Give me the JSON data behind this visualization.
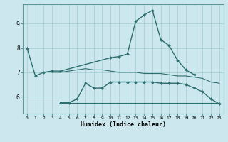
{
  "xlabel": "Humidex (Indice chaleur)",
  "xlim": [
    -0.5,
    23.5
  ],
  "ylim": [
    5.3,
    9.8
  ],
  "yticks": [
    6,
    7,
    8,
    9
  ],
  "xticks": [
    0,
    1,
    2,
    3,
    4,
    5,
    6,
    7,
    8,
    9,
    10,
    11,
    12,
    13,
    14,
    15,
    16,
    17,
    18,
    19,
    20,
    21,
    22,
    23
  ],
  "bg_color": "#cce8ee",
  "grid_color": "#a0cccc",
  "line_color": "#2d6e6e",
  "series": [
    {
      "x": [
        0,
        1,
        2,
        3,
        4,
        10,
        11,
        12,
        13,
        14,
        15,
        16,
        17,
        18,
        19,
        20
      ],
      "y": [
        8.0,
        6.85,
        7.0,
        7.05,
        7.05,
        7.6,
        7.65,
        7.75,
        9.1,
        9.35,
        9.55,
        8.35,
        8.1,
        7.5,
        7.1,
        6.9
      ],
      "marker": "D",
      "markersize": 2.0,
      "lw": 1.0
    },
    {
      "x": [
        3,
        4,
        5,
        6,
        7,
        8,
        9,
        10,
        11,
        12,
        13,
        14,
        15,
        16,
        17,
        18,
        19,
        20,
        21,
        22,
        23
      ],
      "y": [
        7.0,
        7.0,
        7.05,
        7.1,
        7.15,
        7.1,
        7.1,
        7.05,
        7.0,
        7.0,
        7.0,
        6.95,
        6.95,
        6.95,
        6.9,
        6.85,
        6.85,
        6.8,
        6.75,
        6.6,
        6.55
      ],
      "marker": null,
      "markersize": 0,
      "lw": 0.8
    },
    {
      "x": [
        4,
        5,
        6,
        7,
        8,
        9,
        10,
        11,
        12,
        13,
        14,
        15,
        16,
        17,
        18,
        19,
        20,
        21,
        22,
        23
      ],
      "y": [
        5.75,
        5.75,
        5.9,
        6.55,
        6.35,
        6.35,
        6.6,
        6.6,
        6.6,
        6.6,
        6.6,
        6.6,
        6.55,
        6.55,
        6.55,
        6.5,
        6.35,
        6.2,
        5.9,
        5.7
      ],
      "marker": "D",
      "markersize": 2.0,
      "lw": 1.0
    },
    {
      "x": [
        4,
        5,
        10,
        11,
        12,
        13,
        14,
        15,
        16,
        17,
        18,
        19,
        20,
        21,
        22,
        23
      ],
      "y": [
        5.75,
        5.75,
        5.75,
        5.75,
        5.75,
        5.75,
        5.75,
        5.75,
        5.75,
        5.75,
        5.75,
        5.75,
        5.75,
        5.75,
        5.75,
        5.75
      ],
      "marker": null,
      "markersize": 0,
      "lw": 0.8
    }
  ]
}
